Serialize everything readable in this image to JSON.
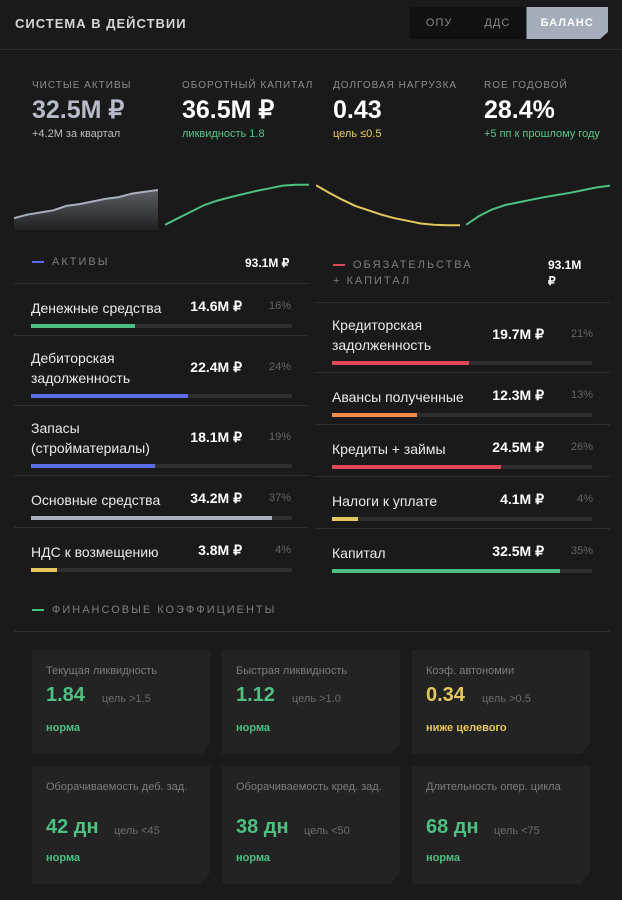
{
  "header": {
    "title": "СИСТЕМА В ДЕЙСТВИИ"
  },
  "tabs": [
    {
      "label": "ОПУ",
      "active": false
    },
    {
      "label": "ДДС",
      "active": false
    },
    {
      "label": "БАЛАНС",
      "active": true
    }
  ],
  "kpis": [
    {
      "label": "ЧИСТЫЕ АКТИВЫ",
      "value": "32.5M ₽",
      "note": "+4.2M за квартал",
      "note_color": "#bdbdbd",
      "value_dim": true,
      "spark_color": "#a9afbd",
      "spark_fill": true,
      "spark": [
        0.2,
        0.28,
        0.33,
        0.38,
        0.48,
        0.52,
        0.58,
        0.64,
        0.68,
        0.76,
        0.8,
        0.84
      ]
    },
    {
      "label": "ОБОРОТНЫЙ КАПИТАЛ",
      "value": "36.5M ₽",
      "note": "ликвидность 1.8",
      "note_color": "#5ac48a",
      "spark_color": "#4ec081",
      "spark_fill": false,
      "spark": [
        0.05,
        0.2,
        0.35,
        0.5,
        0.6,
        0.68,
        0.75,
        0.82,
        0.88,
        0.94,
        0.96,
        0.96
      ]
    },
    {
      "label": "ДОЛГОВАЯ НАГРУЗКА",
      "value": "0.43",
      "note": "цель ≤0.5",
      "note_color": "#e9cf62",
      "spark_color": "#e5c85d",
      "spark_fill": false,
      "spark": [
        0.95,
        0.78,
        0.62,
        0.48,
        0.38,
        0.28,
        0.2,
        0.14,
        0.08,
        0.05,
        0.04,
        0.04
      ]
    },
    {
      "label": "ROE ГОДОВОЙ",
      "value": "28.4%",
      "note": "+5 пп к прошлому году",
      "note_color": "#5ac48a",
      "spark_color": "#4ec081",
      "spark_fill": false,
      "spark": [
        0.05,
        0.25,
        0.4,
        0.5,
        0.56,
        0.62,
        0.68,
        0.73,
        0.78,
        0.84,
        0.9,
        0.94
      ]
    }
  ],
  "assets": {
    "title": "АКТИВЫ",
    "dash_color": "#5b6be8",
    "total": "93.1M ₽",
    "rows": [
      {
        "name": "Денежные средства",
        "value": "14.6M ₽",
        "pct": "16%",
        "share": 0.16,
        "color": "#4ec081"
      },
      {
        "name": "Дебиторская задолженность",
        "value": "22.4M ₽",
        "pct": "24%",
        "share": 0.24,
        "color": "#5b6be8"
      },
      {
        "name": "Запасы (стройматериалы)",
        "value": "18.1M ₽",
        "pct": "19%",
        "share": 0.19,
        "color": "#5b6be8"
      },
      {
        "name": "Основные средства",
        "value": "34.2M ₽",
        "pct": "37%",
        "share": 0.37,
        "color": "#a9afbd"
      },
      {
        "name": "НДС к возмещению",
        "value": "3.8M ₽",
        "pct": "4%",
        "share": 0.04,
        "color": "#e5c85d"
      }
    ]
  },
  "liabilities": {
    "title": "ОБЯЗАТЕЛЬСТВА + КАПИТАЛ",
    "dash_color": "#e0485a",
    "total": "93.1M ₽",
    "rows": [
      {
        "name": "Кредиторская задолженность",
        "value": "19.7M ₽",
        "pct": "21%",
        "share": 0.21,
        "color": "#e0485a"
      },
      {
        "name": "Авансы полученные",
        "value": "12.3M ₽",
        "pct": "13%",
        "share": 0.13,
        "color": "#f08a4b"
      },
      {
        "name": "Кредиты + займы",
        "value": "24.5M ₽",
        "pct": "26%",
        "share": 0.26,
        "color": "#e0485a"
      },
      {
        "name": "Налоги к уплате",
        "value": "4.1M ₽",
        "pct": "4%",
        "share": 0.04,
        "color": "#e5c85d"
      },
      {
        "name": "Капитал",
        "value": "32.5M ₽",
        "pct": "35%",
        "share": 0.35,
        "color": "#4ec081"
      }
    ]
  },
  "ratios": {
    "title": "ФИНАНСОВЫЕ КОЭФФИЦИЕНТЫ",
    "dash_color": "#4ec081",
    "cards": [
      {
        "label": "Текущая ликвидность",
        "value": "1.84",
        "target": "цель >1.5",
        "status": "норма",
        "color": "#4ec081"
      },
      {
        "label": "Быстрая ликвидность",
        "value": "1.12",
        "target": "цель >1.0",
        "status": "норма",
        "color": "#4ec081"
      },
      {
        "label": "Коэф. автономии",
        "value": "0.34",
        "target": "цель >0.5",
        "status": "ниже целевого",
        "color": "#e5c85d"
      },
      {
        "label": "Оборачиваемость деб. зад.",
        "value": "42 дн",
        "target": "цель <45",
        "status": "норма",
        "color": "#4ec081"
      },
      {
        "label": "Оборачиваемость кред. зад.",
        "value": "38 дн",
        "target": "цель <50",
        "status": "норма",
        "color": "#4ec081"
      },
      {
        "label": "Длительность опер. цикла",
        "value": "68 дн",
        "target": "цель <75",
        "status": "норма",
        "color": "#4ec081"
      }
    ]
  }
}
